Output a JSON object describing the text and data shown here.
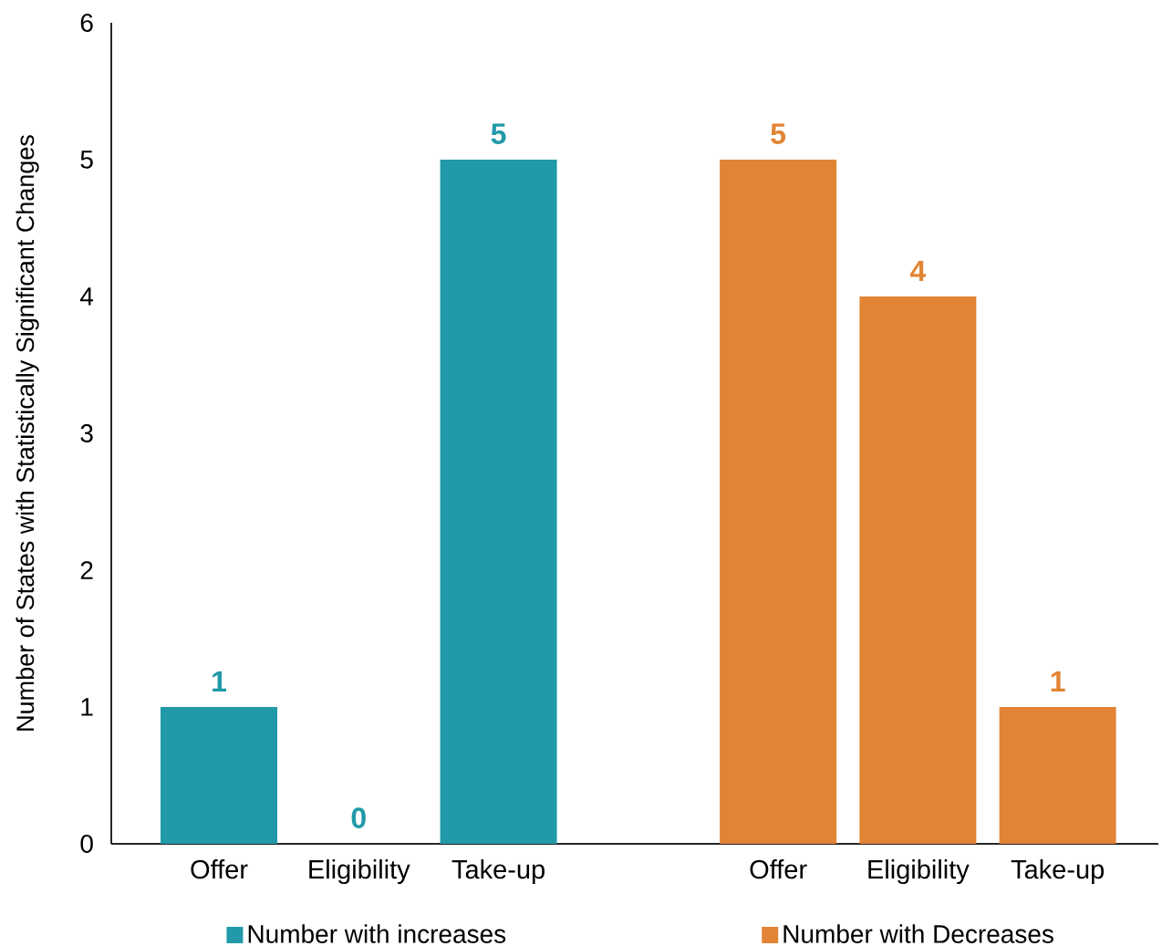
{
  "chart_data": {
    "type": "bar",
    "ylabel": "Number of States with Statistically Significant Changes",
    "categories": [
      "Offer",
      "Eligibility",
      "Take-up",
      null,
      "Offer",
      "Eligibility",
      "Take-up"
    ],
    "series": [
      {
        "name": "Number with increases",
        "color": "#2199a8",
        "values": [
          1,
          0,
          5,
          null,
          null,
          null,
          null
        ]
      },
      {
        "name": "Number with Decreases",
        "color": "#e28435",
        "values": [
          null,
          null,
          null,
          null,
          5,
          4,
          1
        ]
      }
    ],
    "ylim": [
      0,
      6
    ],
    "yticks": [
      0,
      1,
      2,
      3,
      4,
      5,
      6
    ],
    "data_labels": true,
    "legend": "bottom"
  }
}
